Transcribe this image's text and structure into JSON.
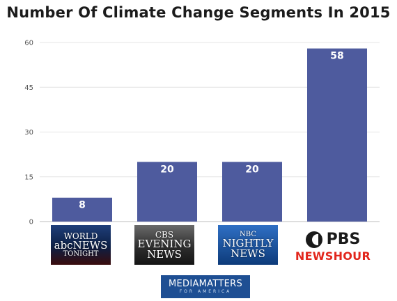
{
  "chart_data": {
    "type": "bar",
    "title": "Number Of Climate Change Segments In 2015",
    "categories": [
      "ABC World News Tonight",
      "CBS Evening News",
      "NBC Nightly News",
      "PBS NewsHour"
    ],
    "values": [
      8,
      20,
      20,
      58
    ],
    "data_labels": [
      "8",
      "20",
      "20",
      "58"
    ],
    "yticks": [
      0,
      15,
      30,
      45,
      60
    ],
    "ylim": [
      0,
      60
    ],
    "grid": true,
    "bar_color": "#4e5b9e",
    "xlabel": "",
    "ylabel": ""
  },
  "logos": {
    "abc": {
      "icon": "abc-world-news-tonight-logo",
      "line1": "WORLD",
      "line2": "abcNEWS",
      "line3": "TONIGHT"
    },
    "cbs": {
      "icon": "cbs-evening-news-logo",
      "line1": "CBS",
      "line2": "EVENING",
      "line3": "NEWS"
    },
    "nbc": {
      "icon": "nbc-nightly-news-logo",
      "line1": "NBC",
      "line2": "NIGHTLY",
      "line3": "NEWS"
    },
    "pbs": {
      "icon": "pbs-newshour-logo",
      "line1": "PBS",
      "line2": "NEWSHOUR"
    }
  },
  "source": {
    "main": "MEDIAMATTERS",
    "sub": "FOR AMERICA"
  },
  "colors": {
    "pbs_red": "#e2261c",
    "mediamatters_blue": "#1e4f93"
  }
}
